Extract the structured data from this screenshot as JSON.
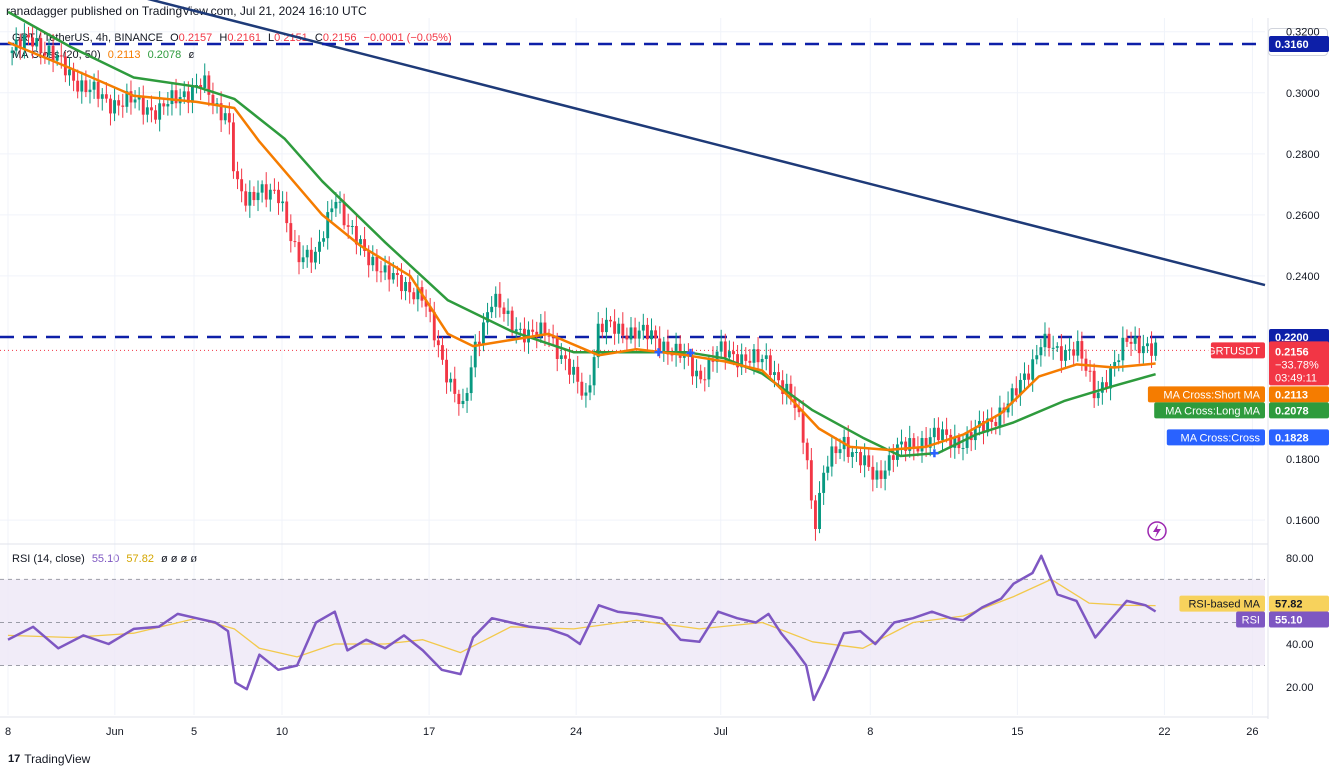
{
  "header": {
    "publisher_line": "ranadagger published on TradingView.com, Jul 21, 2024 16:10 UTC"
  },
  "legend": {
    "symbol": "GRT / TetherUS, 4h, BINANCE",
    "o_label": "O",
    "o_value": "0.2157",
    "h_label": "H",
    "h_value": "0.2161",
    "l_label": "L",
    "l_value": "0.2151",
    "c_label": "C",
    "c_value": "0.2156",
    "change": "−0.0001 (−0.05%)",
    "ma_cross_title": "MA Cross (20, 50)",
    "ma_short_value": "0.2113",
    "ma_long_value": "0.2078",
    "ma_cross_extra": "ø",
    "rsi_title": "RSI (14, close)",
    "rsi_value": "55.10",
    "rsi_ma_value": "57.82",
    "rsi_extras": "ø  ø  ø  ø"
  },
  "currency_button": "USDT",
  "footer": {
    "brand": "TradingView",
    "logo": "17"
  },
  "colors": {
    "candle_up": "#089981",
    "candle_down": "#f23645",
    "ma_short": "#f57c00",
    "ma_long": "#2e9b3d",
    "trendline": "#1e3a78",
    "hline": "#0d1fa8",
    "rsi_line": "#7e57c2",
    "rsi_ma": "#f2c94c",
    "rsi_band": "#ede7f6"
  },
  "chart_data": [
    {
      "type": "candlestick",
      "title": "GRT / TetherUS, 4h, BINANCE",
      "y_ticks": [
        "0.3200",
        "0.3000",
        "0.2800",
        "0.2600",
        "0.2400",
        "0.1600"
      ],
      "y_tick_values": [
        0.32,
        0.3,
        0.28,
        0.26,
        0.24,
        0.16
      ],
      "ylim": [
        0.1525,
        0.3245
      ],
      "x_ticks": [
        "8",
        "Jun",
        "5",
        "10",
        "17",
        "24",
        "Jul",
        "8",
        "15",
        "22",
        "26"
      ],
      "x_tick_positions": [
        0,
        0.085,
        0.148,
        0.218,
        0.335,
        0.452,
        0.567,
        0.686,
        0.803,
        0.92,
        0.99
      ],
      "grid": true,
      "price_path": [
        [
          0.0,
          0.313
        ],
        [
          0.02,
          0.318
        ],
        [
          0.04,
          0.31
        ],
        [
          0.06,
          0.302
        ],
        [
          0.08,
          0.297
        ],
        [
          0.1,
          0.297
        ],
        [
          0.12,
          0.294
        ],
        [
          0.14,
          0.3
        ],
        [
          0.155,
          0.303
        ],
        [
          0.165,
          0.295
        ],
        [
          0.175,
          0.294
        ],
        [
          0.181,
          0.27
        ],
        [
          0.19,
          0.263
        ],
        [
          0.2,
          0.27
        ],
        [
          0.215,
          0.265
        ],
        [
          0.23,
          0.248
        ],
        [
          0.245,
          0.245
        ],
        [
          0.26,
          0.268
        ],
        [
          0.27,
          0.255
        ],
        [
          0.285,
          0.248
        ],
        [
          0.3,
          0.24
        ],
        [
          0.315,
          0.238
        ],
        [
          0.33,
          0.232
        ],
        [
          0.34,
          0.22
        ],
        [
          0.352,
          0.205
        ],
        [
          0.362,
          0.195
        ],
        [
          0.372,
          0.218
        ],
        [
          0.385,
          0.232
        ],
        [
          0.4,
          0.225
        ],
        [
          0.415,
          0.22
        ],
        [
          0.43,
          0.222
        ],
        [
          0.445,
          0.21
        ],
        [
          0.46,
          0.2
        ],
        [
          0.47,
          0.224
        ],
        [
          0.485,
          0.222
        ],
        [
          0.5,
          0.222
        ],
        [
          0.52,
          0.218
        ],
        [
          0.535,
          0.214
        ],
        [
          0.55,
          0.207
        ],
        [
          0.565,
          0.215
        ],
        [
          0.58,
          0.214
        ],
        [
          0.595,
          0.212
        ],
        [
          0.605,
          0.212
        ],
        [
          0.615,
          0.205
        ],
        [
          0.625,
          0.198
        ],
        [
          0.635,
          0.184
        ],
        [
          0.641,
          0.158
        ],
        [
          0.65,
          0.177
        ],
        [
          0.665,
          0.186
        ],
        [
          0.678,
          0.18
        ],
        [
          0.69,
          0.173
        ],
        [
          0.705,
          0.183
        ],
        [
          0.72,
          0.184
        ],
        [
          0.735,
          0.188
        ],
        [
          0.75,
          0.186
        ],
        [
          0.76,
          0.186
        ],
        [
          0.775,
          0.19
        ],
        [
          0.79,
          0.196
        ],
        [
          0.8,
          0.2
        ],
        [
          0.815,
          0.212
        ],
        [
          0.822,
          0.219
        ],
        [
          0.835,
          0.214
        ],
        [
          0.85,
          0.218
        ],
        [
          0.865,
          0.2
        ],
        [
          0.875,
          0.208
        ],
        [
          0.89,
          0.218
        ],
        [
          0.905,
          0.218
        ],
        [
          0.913,
          0.2156
        ]
      ],
      "series": [
        {
          "name": "MA Cross:Short MA",
          "value_label": "0.2113",
          "values": [
            [
              0.0,
              0.3165
            ],
            [
              0.05,
              0.308
            ],
            [
              0.1,
              0.299
            ],
            [
              0.15,
              0.297
            ],
            [
              0.18,
              0.295
            ],
            [
              0.2,
              0.284
            ],
            [
              0.225,
              0.272
            ],
            [
              0.25,
              0.26
            ],
            [
              0.28,
              0.25
            ],
            [
              0.32,
              0.24
            ],
            [
              0.35,
              0.221
            ],
            [
              0.37,
              0.217
            ],
            [
              0.4,
              0.219
            ],
            [
              0.43,
              0.221
            ],
            [
              0.47,
              0.214
            ],
            [
              0.5,
              0.216
            ],
            [
              0.54,
              0.214
            ],
            [
              0.57,
              0.212
            ],
            [
              0.6,
              0.209
            ],
            [
              0.62,
              0.201
            ],
            [
              0.645,
              0.19
            ],
            [
              0.67,
              0.184
            ],
            [
              0.7,
              0.183
            ],
            [
              0.73,
              0.184
            ],
            [
              0.76,
              0.188
            ],
            [
              0.79,
              0.195
            ],
            [
              0.82,
              0.207
            ],
            [
              0.85,
              0.211
            ],
            [
              0.88,
              0.21
            ],
            [
              0.913,
              0.2113
            ]
          ]
        },
        {
          "name": "MA Cross:Long MA",
          "value_label": "0.2078",
          "values": [
            [
              0.0,
              0.3265
            ],
            [
              0.05,
              0.315
            ],
            [
              0.1,
              0.305
            ],
            [
              0.15,
              0.302
            ],
            [
              0.18,
              0.298
            ],
            [
              0.22,
              0.285
            ],
            [
              0.25,
              0.271
            ],
            [
              0.3,
              0.251
            ],
            [
              0.35,
              0.232
            ],
            [
              0.4,
              0.222
            ],
            [
              0.45,
              0.215
            ],
            [
              0.5,
              0.215
            ],
            [
              0.54,
              0.215
            ],
            [
              0.57,
              0.213
            ],
            [
              0.6,
              0.208
            ],
            [
              0.64,
              0.196
            ],
            [
              0.68,
              0.187
            ],
            [
              0.71,
              0.181
            ],
            [
              0.74,
              0.182
            ],
            [
              0.77,
              0.188
            ],
            [
              0.8,
              0.192
            ],
            [
              0.84,
              0.199
            ],
            [
              0.88,
              0.204
            ],
            [
              0.913,
              0.2078
            ]
          ]
        },
        {
          "name": "Trendline",
          "values": [
            [
              0.09,
              0.333
            ],
            [
              1.0,
              0.237
            ]
          ]
        }
      ],
      "annotations": [
        {
          "type": "hline",
          "value": 0.316,
          "label": "0.3160"
        },
        {
          "type": "hline",
          "value": 0.22,
          "label": "0.2200"
        },
        {
          "type": "current",
          "name": "GRTUSDT",
          "value": 0.2156,
          "label": "0.2156",
          "change": "−33.78%",
          "countdown": "03:49:11"
        },
        {
          "type": "label",
          "name": "MA Cross:Short MA",
          "label": "0.2113"
        },
        {
          "type": "label",
          "name": "MA Cross:Long MA",
          "label": "0.2078"
        },
        {
          "type": "label",
          "name": "MA Cross:Cross",
          "label": "0.1828"
        }
      ]
    },
    {
      "type": "line",
      "title": "RSI (14, close)",
      "y_ticks": [
        "80.00",
        "40.00",
        "20.00"
      ],
      "y_tick_values": [
        80,
        40,
        20
      ],
      "ylim": [
        7,
        86
      ],
      "band": [
        30,
        70
      ],
      "mid_line": 50,
      "series": [
        {
          "name": "RSI",
          "value_label": "55.10",
          "values": [
            [
              0.0,
              42
            ],
            [
              0.02,
              48
            ],
            [
              0.04,
              38
            ],
            [
              0.06,
              44
            ],
            [
              0.08,
              40
            ],
            [
              0.1,
              47
            ],
            [
              0.12,
              48
            ],
            [
              0.135,
              54
            ],
            [
              0.15,
              52
            ],
            [
              0.165,
              50
            ],
            [
              0.175,
              46
            ],
            [
              0.181,
              22
            ],
            [
              0.19,
              19
            ],
            [
              0.2,
              35
            ],
            [
              0.215,
              28
            ],
            [
              0.23,
              30
            ],
            [
              0.245,
              50
            ],
            [
              0.26,
              55
            ],
            [
              0.27,
              37
            ],
            [
              0.285,
              42
            ],
            [
              0.3,
              38
            ],
            [
              0.315,
              44
            ],
            [
              0.33,
              37
            ],
            [
              0.345,
              28
            ],
            [
              0.36,
              26
            ],
            [
              0.37,
              43
            ],
            [
              0.385,
              52
            ],
            [
              0.4,
              50
            ],
            [
              0.415,
              48
            ],
            [
              0.43,
              47
            ],
            [
              0.445,
              44
            ],
            [
              0.455,
              40
            ],
            [
              0.47,
              58
            ],
            [
              0.485,
              55
            ],
            [
              0.5,
              54
            ],
            [
              0.52,
              52
            ],
            [
              0.535,
              42
            ],
            [
              0.55,
              41
            ],
            [
              0.565,
              55
            ],
            [
              0.58,
              52
            ],
            [
              0.595,
              50
            ],
            [
              0.605,
              54
            ],
            [
              0.615,
              45
            ],
            [
              0.625,
              38
            ],
            [
              0.635,
              30
            ],
            [
              0.641,
              14
            ],
            [
              0.65,
              25
            ],
            [
              0.665,
              45
            ],
            [
              0.678,
              46
            ],
            [
              0.69,
              40
            ],
            [
              0.705,
              50
            ],
            [
              0.72,
              52
            ],
            [
              0.735,
              55
            ],
            [
              0.75,
              52
            ],
            [
              0.76,
              51
            ],
            [
              0.775,
              57
            ],
            [
              0.79,
              61
            ],
            [
              0.8,
              68
            ],
            [
              0.815,
              73
            ],
            [
              0.822,
              81
            ],
            [
              0.835,
              63
            ],
            [
              0.85,
              60
            ],
            [
              0.865,
              43
            ],
            [
              0.875,
              50
            ],
            [
              0.89,
              60
            ],
            [
              0.905,
              58
            ],
            [
              0.913,
              55.1
            ]
          ]
        },
        {
          "name": "RSI-based MA",
          "value_label": "57.82",
          "values": [
            [
              0.0,
              44
            ],
            [
              0.05,
              43
            ],
            [
              0.1,
              45
            ],
            [
              0.15,
              52
            ],
            [
              0.18,
              47
            ],
            [
              0.2,
              38
            ],
            [
              0.23,
              34
            ],
            [
              0.26,
              40
            ],
            [
              0.3,
              40
            ],
            [
              0.33,
              42
            ],
            [
              0.36,
              36
            ],
            [
              0.4,
              48
            ],
            [
              0.45,
              47
            ],
            [
              0.5,
              51
            ],
            [
              0.55,
              47
            ],
            [
              0.6,
              50
            ],
            [
              0.64,
              41
            ],
            [
              0.68,
              38
            ],
            [
              0.72,
              50
            ],
            [
              0.76,
              53
            ],
            [
              0.8,
              62
            ],
            [
              0.83,
              70
            ],
            [
              0.86,
              59
            ],
            [
              0.89,
              58
            ],
            [
              0.913,
              57.82
            ]
          ]
        }
      ],
      "annotations": [
        {
          "type": "label",
          "name": "RSI-based MA",
          "label": "57.82"
        },
        {
          "type": "label",
          "name": "RSI",
          "label": "55.10"
        }
      ]
    }
  ]
}
